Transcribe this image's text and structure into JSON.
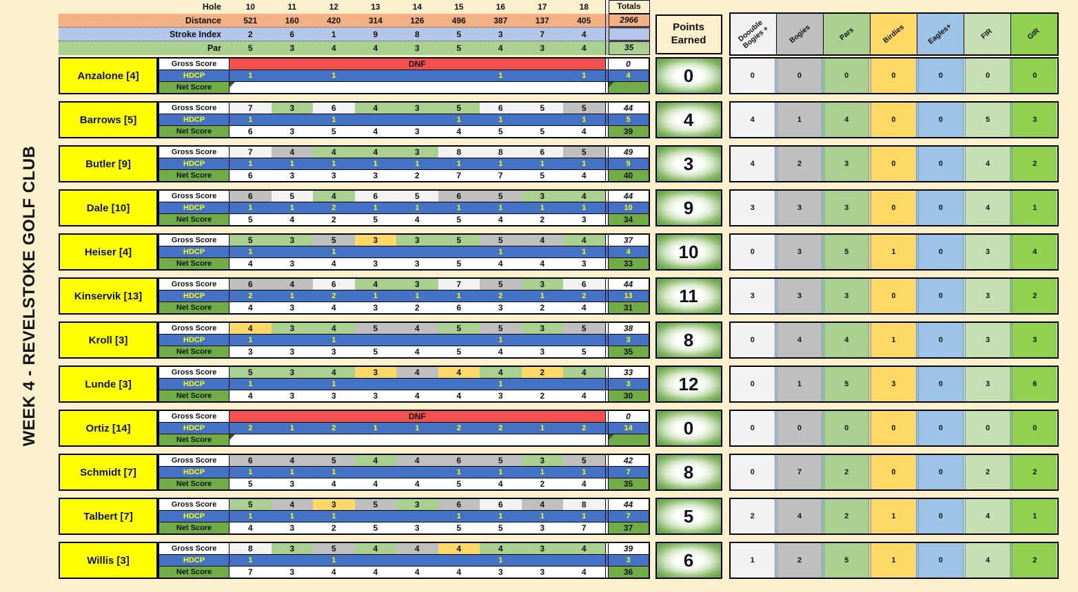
{
  "title": "WEEK 4 - REVELSTOKE GOLF CLUB",
  "colors": {
    "background": "#fdf0cd",
    "distance_row": "#f4b183",
    "stroke_index_row": "#b4c6e7",
    "par_row": "#a9d08e",
    "player_name": "#ffff00",
    "hdcp_blue": "#4472c4",
    "hdcp_text": "#ffff00",
    "net_green": "#70ad47",
    "dnf_red": "#f4504f"
  },
  "header": {
    "hole_label": "Hole",
    "distance_label": "Distance",
    "stroke_index_label": "Stroke Index",
    "par_label": "Par",
    "totals_label": "Totals",
    "holes": [
      "10",
      "11",
      "12",
      "13",
      "14",
      "15",
      "16",
      "17",
      "18"
    ],
    "distances": [
      "521",
      "160",
      "420",
      "314",
      "126",
      "496",
      "387",
      "137",
      "405"
    ],
    "distance_total": "2966",
    "stroke_indexes": [
      "2",
      "6",
      "1",
      "9",
      "8",
      "5",
      "3",
      "7",
      "4"
    ],
    "pars": [
      "5",
      "3",
      "4",
      "4",
      "3",
      "5",
      "4",
      "3",
      "4"
    ],
    "par_total": "35"
  },
  "row_labels": {
    "gross": "Gross Score",
    "hdcp": "HDCP",
    "net": "Net Score"
  },
  "points_header": "Points Earned",
  "stat_columns": [
    {
      "label": "Doouble Bogies +",
      "color": "#f2f2f2"
    },
    {
      "label": "Bogies",
      "color": "#bfbfbf"
    },
    {
      "label": "Pars",
      "color": "#a9d08e"
    },
    {
      "label": "Birdies",
      "color": "#ffd966"
    },
    {
      "label": "Eagles+",
      "color": "#9dc3e6"
    },
    {
      "label": "FIR",
      "color": "#c6e0b4"
    },
    {
      "label": "GIR",
      "color": "#92d050"
    }
  ],
  "score_color_legend": {
    "dbl": "#f2f2f2",
    "bog": "#bfbfbf",
    "par": "#a9d08e",
    "bird": "#ffd966"
  },
  "players": [
    {
      "name": "Anzalone [4]",
      "dnf": true,
      "dnf_label": "DNF",
      "gross": null,
      "gross_marks": null,
      "gross_total": "0",
      "hdcp": [
        "1",
        "",
        "1",
        "",
        "",
        "",
        "1",
        "",
        "1"
      ],
      "hdcp_total": "4",
      "net": [
        "",
        "",
        "",
        "",
        "",
        "",
        "",
        "",
        ""
      ],
      "net_total": "",
      "points": "0",
      "stats": [
        "0",
        "0",
        "0",
        "0",
        "0",
        "0",
        "0"
      ]
    },
    {
      "name": "Barrows [5]",
      "dnf": false,
      "gross": [
        "7",
        "3",
        "6",
        "4",
        "3",
        "5",
        "6",
        "5",
        "5"
      ],
      "gross_marks": [
        "dbl",
        "par",
        "dbl",
        "par",
        "par",
        "par",
        "dbl",
        "dbl",
        "bog"
      ],
      "gross_total": "44",
      "hdcp": [
        "1",
        "",
        "1",
        "",
        "",
        "1",
        "1",
        "",
        "1"
      ],
      "hdcp_total": "5",
      "net": [
        "6",
        "3",
        "5",
        "4",
        "3",
        "4",
        "5",
        "5",
        "4"
      ],
      "net_total": "39",
      "points": "4",
      "stats": [
        "4",
        "1",
        "4",
        "0",
        "0",
        "5",
        "3"
      ]
    },
    {
      "name": "Butler [9]",
      "dnf": false,
      "gross": [
        "7",
        "4",
        "4",
        "4",
        "3",
        "8",
        "8",
        "6",
        "5"
      ],
      "gross_marks": [
        "dbl",
        "bog",
        "par",
        "par",
        "par",
        "dbl",
        "dbl",
        "dbl",
        "bog"
      ],
      "gross_total": "49",
      "hdcp": [
        "1",
        "1",
        "1",
        "1",
        "1",
        "1",
        "1",
        "1",
        "1"
      ],
      "hdcp_total": "9",
      "net": [
        "6",
        "3",
        "3",
        "3",
        "2",
        "7",
        "7",
        "5",
        "4"
      ],
      "net_total": "40",
      "points": "3",
      "stats": [
        "4",
        "2",
        "3",
        "0",
        "0",
        "4",
        "2"
      ]
    },
    {
      "name": "Dale [10]",
      "dnf": false,
      "gross": [
        "6",
        "5",
        "4",
        "6",
        "5",
        "6",
        "5",
        "3",
        "4"
      ],
      "gross_marks": [
        "bog",
        "dbl",
        "par",
        "dbl",
        "dbl",
        "bog",
        "bog",
        "par",
        "par"
      ],
      "gross_total": "44",
      "hdcp": [
        "1",
        "1",
        "2",
        "1",
        "1",
        "1",
        "1",
        "1",
        "1"
      ],
      "hdcp_total": "10",
      "net": [
        "5",
        "4",
        "2",
        "5",
        "4",
        "5",
        "4",
        "2",
        "3"
      ],
      "net_total": "34",
      "points": "9",
      "stats": [
        "3",
        "3",
        "3",
        "0",
        "0",
        "4",
        "1"
      ]
    },
    {
      "name": "Heiser [4]",
      "dnf": false,
      "gross": [
        "5",
        "3",
        "5",
        "3",
        "3",
        "5",
        "5",
        "4",
        "4"
      ],
      "gross_marks": [
        "par",
        "par",
        "bog",
        "bird",
        "par",
        "par",
        "bog",
        "bog",
        "par"
      ],
      "gross_total": "37",
      "hdcp": [
        "1",
        "",
        "1",
        "",
        "",
        "",
        "1",
        "",
        "1"
      ],
      "hdcp_total": "4",
      "net": [
        "4",
        "3",
        "4",
        "3",
        "3",
        "5",
        "4",
        "4",
        "3"
      ],
      "net_total": "33",
      "points": "10",
      "stats": [
        "0",
        "3",
        "5",
        "1",
        "0",
        "3",
        "4"
      ]
    },
    {
      "name": "Kinservik [13]",
      "dnf": false,
      "gross": [
        "6",
        "4",
        "6",
        "4",
        "3",
        "7",
        "5",
        "3",
        "6"
      ],
      "gross_marks": [
        "bog",
        "bog",
        "dbl",
        "par",
        "par",
        "dbl",
        "bog",
        "par",
        "dbl"
      ],
      "gross_total": "44",
      "hdcp": [
        "2",
        "1",
        "2",
        "1",
        "1",
        "1",
        "2",
        "1",
        "2"
      ],
      "hdcp_total": "13",
      "net": [
        "4",
        "3",
        "4",
        "3",
        "2",
        "6",
        "3",
        "2",
        "4"
      ],
      "net_total": "31",
      "points": "11",
      "stats": [
        "3",
        "3",
        "3",
        "0",
        "0",
        "3",
        "2"
      ]
    },
    {
      "name": "Kroll [3]",
      "dnf": false,
      "gross": [
        "4",
        "3",
        "4",
        "5",
        "4",
        "5",
        "5",
        "3",
        "5"
      ],
      "gross_marks": [
        "bird",
        "par",
        "par",
        "bog",
        "bog",
        "par",
        "bog",
        "par",
        "bog"
      ],
      "gross_total": "38",
      "hdcp": [
        "1",
        "",
        "1",
        "",
        "",
        "",
        "1",
        "",
        ""
      ],
      "hdcp_total": "3",
      "net": [
        "3",
        "3",
        "3",
        "5",
        "4",
        "5",
        "4",
        "3",
        "5"
      ],
      "net_total": "35",
      "points": "8",
      "stats": [
        "0",
        "4",
        "4",
        "1",
        "0",
        "3",
        "3"
      ]
    },
    {
      "name": "Lunde [3]",
      "dnf": false,
      "gross": [
        "5",
        "3",
        "4",
        "3",
        "4",
        "4",
        "4",
        "2",
        "4"
      ],
      "gross_marks": [
        "par",
        "par",
        "par",
        "bird",
        "bog",
        "bird",
        "par",
        "bird",
        "par"
      ],
      "gross_total": "33",
      "hdcp": [
        "1",
        "",
        "1",
        "",
        "",
        "",
        "1",
        "",
        ""
      ],
      "hdcp_total": "3",
      "net": [
        "4",
        "3",
        "3",
        "3",
        "4",
        "4",
        "3",
        "2",
        "4"
      ],
      "net_total": "30",
      "points": "12",
      "stats": [
        "0",
        "1",
        "5",
        "3",
        "0",
        "3",
        "6"
      ]
    },
    {
      "name": "Ortiz [14]",
      "dnf": true,
      "dnf_label": "DNF",
      "gross": null,
      "gross_marks": null,
      "gross_total": "0",
      "hdcp": [
        "2",
        "1",
        "2",
        "1",
        "1",
        "2",
        "2",
        "1",
        "2"
      ],
      "hdcp_total": "14",
      "net": [
        "",
        "",
        "",
        "",
        "",
        "",
        "",
        "",
        ""
      ],
      "net_total": "",
      "points": "0",
      "stats": [
        "0",
        "0",
        "0",
        "0",
        "0",
        "0",
        "0"
      ]
    },
    {
      "name": "Schmidt [7]",
      "dnf": false,
      "gross": [
        "6",
        "4",
        "5",
        "4",
        "4",
        "6",
        "5",
        "3",
        "5"
      ],
      "gross_marks": [
        "bog",
        "bog",
        "bog",
        "par",
        "bog",
        "bog",
        "bog",
        "par",
        "bog"
      ],
      "gross_total": "42",
      "hdcp": [
        "1",
        "1",
        "1",
        "",
        "",
        "1",
        "1",
        "1",
        "1"
      ],
      "hdcp_total": "7",
      "net": [
        "5",
        "3",
        "4",
        "4",
        "4",
        "5",
        "4",
        "2",
        "4"
      ],
      "net_total": "35",
      "points": "8",
      "stats": [
        "0",
        "7",
        "2",
        "0",
        "0",
        "2",
        "2"
      ]
    },
    {
      "name": "Talbert [7]",
      "dnf": false,
      "gross": [
        "5",
        "4",
        "3",
        "5",
        "3",
        "6",
        "6",
        "4",
        "8"
      ],
      "gross_marks": [
        "par",
        "bog",
        "bird",
        "bog",
        "par",
        "bog",
        "dbl",
        "bog",
        "dbl"
      ],
      "gross_total": "44",
      "hdcp": [
        "1",
        "1",
        "1",
        "",
        "",
        "1",
        "1",
        "1",
        "1"
      ],
      "hdcp_total": "7",
      "net": [
        "4",
        "3",
        "2",
        "5",
        "3",
        "5",
        "5",
        "3",
        "7"
      ],
      "net_total": "37",
      "points": "5",
      "stats": [
        "2",
        "4",
        "2",
        "1",
        "0",
        "4",
        "1"
      ]
    },
    {
      "name": "Willis [3]",
      "dnf": false,
      "gross": [
        "8",
        "3",
        "5",
        "4",
        "4",
        "4",
        "4",
        "3",
        "4"
      ],
      "gross_marks": [
        "dbl",
        "par",
        "bog",
        "par",
        "bog",
        "bird",
        "par",
        "par",
        "par"
      ],
      "gross_total": "39",
      "hdcp": [
        "1",
        "",
        "1",
        "",
        "",
        "",
        "1",
        "",
        ""
      ],
      "hdcp_total": "3",
      "net": [
        "7",
        "3",
        "4",
        "4",
        "4",
        "4",
        "3",
        "3",
        "4"
      ],
      "net_total": "36",
      "points": "6",
      "stats": [
        "1",
        "2",
        "5",
        "1",
        "0",
        "4",
        "2"
      ]
    }
  ]
}
